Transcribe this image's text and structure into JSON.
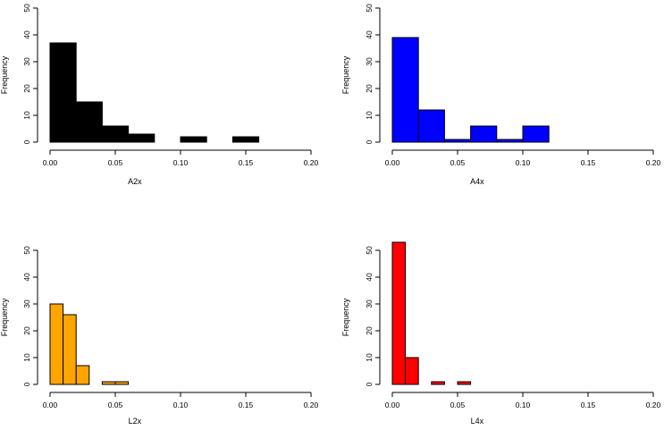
{
  "chart_data": [
    {
      "type": "bar",
      "subtype": "histogram",
      "title": "",
      "xlabel": "A2x",
      "ylabel": "Frequency",
      "fill": "#000000",
      "bin_width": 0.02,
      "bins": [
        0.0,
        0.02,
        0.04,
        0.06,
        0.08,
        0.1,
        0.12,
        0.14
      ],
      "values": [
        37,
        15,
        6,
        3,
        0,
        2,
        0,
        2
      ],
      "xlim": [
        0,
        0.2
      ],
      "ylim": [
        0,
        50
      ],
      "xticks": [
        0.0,
        0.05,
        0.1,
        0.15,
        0.2
      ],
      "xtick_labels": [
        "0.00",
        "0.05",
        "0.10",
        "0.15",
        "0.20"
      ],
      "yticks": [
        0,
        10,
        20,
        30,
        40,
        50
      ],
      "ytick_labels": [
        "0",
        "10",
        "20",
        "30",
        "40",
        "50"
      ]
    },
    {
      "type": "bar",
      "subtype": "histogram",
      "title": "",
      "xlabel": "A4x",
      "ylabel": "Frequency",
      "fill": "#0000ff",
      "bin_width": 0.02,
      "bins": [
        0.0,
        0.02,
        0.04,
        0.06,
        0.08,
        0.1
      ],
      "values": [
        39,
        12,
        1,
        6,
        1,
        6
      ],
      "xlim": [
        0,
        0.2
      ],
      "ylim": [
        0,
        50
      ],
      "xticks": [
        0.0,
        0.05,
        0.1,
        0.15,
        0.2
      ],
      "xtick_labels": [
        "0.00",
        "0.05",
        "0.10",
        "0.15",
        "0.20"
      ],
      "yticks": [
        0,
        10,
        20,
        30,
        40,
        50
      ],
      "ytick_labels": [
        "0",
        "10",
        "20",
        "30",
        "40",
        "50"
      ]
    },
    {
      "type": "bar",
      "subtype": "histogram",
      "title": "",
      "xlabel": "L2x",
      "ylabel": "Frequency",
      "fill": "#ffa500",
      "bin_width": 0.01,
      "bins": [
        0.0,
        0.01,
        0.02,
        0.03,
        0.04,
        0.05
      ],
      "values": [
        30,
        26,
        7,
        0,
        1,
        1
      ],
      "xlim": [
        0,
        0.2
      ],
      "ylim": [
        0,
        50
      ],
      "xticks": [
        0.0,
        0.05,
        0.1,
        0.15,
        0.2
      ],
      "xtick_labels": [
        "0.00",
        "0.05",
        "0.10",
        "0.15",
        "0.20"
      ],
      "yticks": [
        0,
        10,
        20,
        30,
        40,
        50
      ],
      "ytick_labels": [
        "0",
        "10",
        "20",
        "30",
        "40",
        "50"
      ]
    },
    {
      "type": "bar",
      "subtype": "histogram",
      "title": "",
      "xlabel": "L4x",
      "ylabel": "Frequency",
      "fill": "#ff0000",
      "bin_width": 0.01,
      "bins": [
        0.0,
        0.01,
        0.02,
        0.03,
        0.04,
        0.05
      ],
      "values": [
        53,
        10,
        0,
        1,
        0,
        1
      ],
      "xlim": [
        0,
        0.2
      ],
      "ylim": [
        0,
        50
      ],
      "xticks": [
        0.0,
        0.05,
        0.1,
        0.15,
        0.2
      ],
      "xtick_labels": [
        "0.00",
        "0.05",
        "0.10",
        "0.15",
        "0.20"
      ],
      "yticks": [
        0,
        10,
        20,
        30,
        40,
        50
      ],
      "ytick_labels": [
        "0",
        "10",
        "20",
        "30",
        "40",
        "50"
      ]
    }
  ]
}
